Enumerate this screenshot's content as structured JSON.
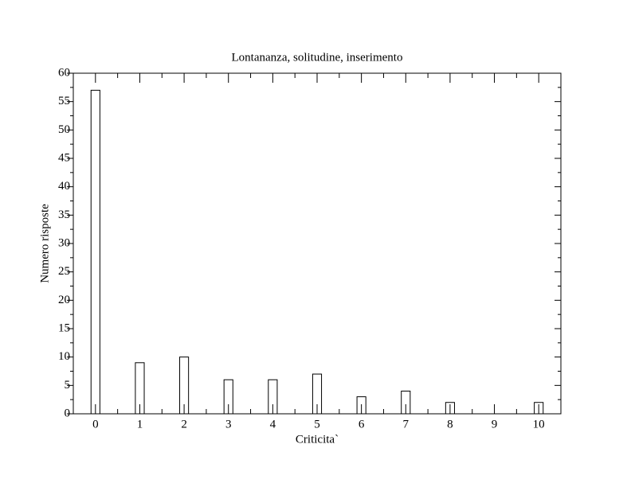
{
  "chart_data": {
    "type": "bar",
    "title": "Lontananza, solitudine, inserimento",
    "x_label": "Criticita`",
    "y_label": "Numero risposte",
    "x": [
      0,
      1,
      2,
      3,
      4,
      5,
      6,
      7,
      8,
      9,
      10
    ],
    "values": [
      57,
      9,
      10,
      6,
      6,
      7,
      3,
      4,
      2,
      0,
      2
    ],
    "color": "#ffffff",
    "edge_color": "#000000",
    "xlim": [
      -0.5,
      10.5
    ],
    "xticks": [
      0,
      1,
      2,
      3,
      4,
      5,
      6,
      7,
      8,
      9,
      10
    ],
    "ylim": [
      0,
      60
    ],
    "yticks": [
      0,
      5,
      10,
      15,
      20,
      25,
      30,
      35,
      40,
      45,
      50,
      55,
      60
    ],
    "grid": false
  }
}
